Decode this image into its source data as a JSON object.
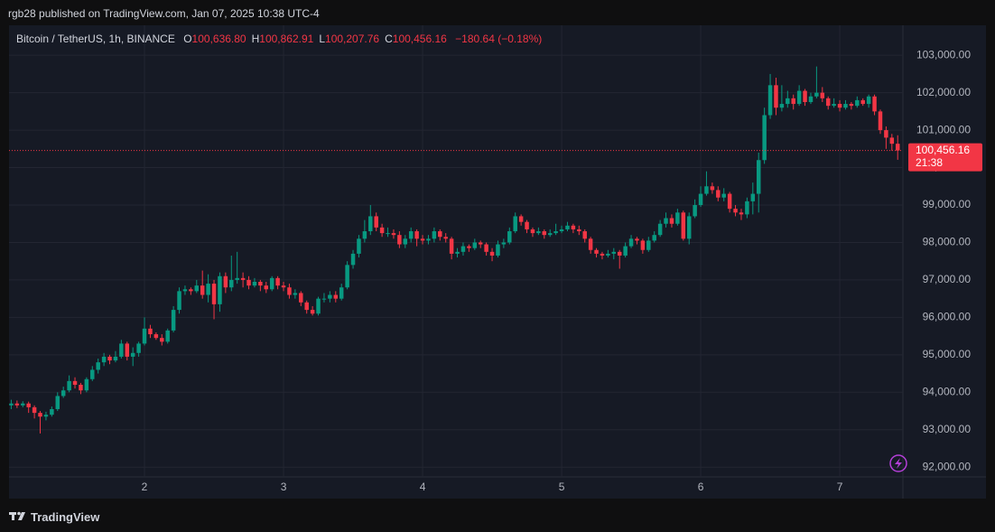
{
  "header": {
    "byline": "rgb28 published on TradingView.com, Jan 07, 2025 10:38 UTC-4"
  },
  "chart_data": {
    "type": "candlestick",
    "symbol": "Bitcoin / TetherUS, 1h, BINANCE",
    "ohlc_legend": [
      {
        "key": "O",
        "value": "100,636.80"
      },
      {
        "key": "H",
        "value": "100,862.91"
      },
      {
        "key": "L",
        "value": "100,207.76"
      },
      {
        "key": "C",
        "value": "100,456.16"
      }
    ],
    "change": "−180.64 (−0.18%)",
    "x": [
      1,
      2,
      3,
      4,
      5,
      6,
      7,
      8,
      9,
      10,
      11,
      12,
      13,
      14,
      15,
      16,
      17,
      18,
      19,
      20,
      21,
      22,
      23,
      24,
      25,
      26,
      27,
      28,
      29,
      30,
      31,
      32,
      33,
      34,
      35,
      36,
      37,
      38,
      39,
      40,
      41,
      42,
      43,
      44,
      45,
      46,
      47,
      48,
      49,
      50,
      51,
      52,
      53,
      54,
      55,
      56,
      57,
      58,
      59,
      60,
      61,
      62,
      63,
      64,
      65,
      66,
      67,
      68,
      69,
      70,
      71,
      72,
      73,
      74,
      75,
      76,
      77,
      78,
      79,
      80,
      81,
      82,
      83,
      84,
      85,
      86,
      87,
      88,
      89,
      90,
      91,
      92,
      93,
      94,
      95,
      96,
      97,
      98,
      99,
      100,
      101,
      102,
      103,
      104,
      105,
      106,
      107,
      108,
      109,
      110,
      111,
      112,
      113,
      114,
      115,
      116,
      117,
      118,
      119,
      120,
      121,
      122,
      123,
      124,
      125,
      126,
      127,
      128,
      129,
      130,
      131,
      132,
      133,
      134,
      135,
      136,
      137,
      138,
      139,
      140,
      141,
      142,
      143,
      144,
      145,
      146,
      147,
      148,
      149,
      150,
      151,
      152,
      153,
      154
    ],
    "xlim": [
      0.62,
      154.9
    ],
    "xticks": [
      {
        "value": 24,
        "label": "2"
      },
      {
        "value": 48,
        "label": "3"
      },
      {
        "value": 72,
        "label": "4"
      },
      {
        "value": 96,
        "label": "5"
      },
      {
        "value": 120,
        "label": "6"
      },
      {
        "value": 144,
        "label": "7"
      }
    ],
    "ylim": [
      91740,
      103800
    ],
    "yticks": [
      {
        "value": 92000,
        "label": "92,000.00"
      },
      {
        "value": 93000,
        "label": "93,000.00"
      },
      {
        "value": 94000,
        "label": "94,000.00"
      },
      {
        "value": 95000,
        "label": "95,000.00"
      },
      {
        "value": 96000,
        "label": "96,000.00"
      },
      {
        "value": 97000,
        "label": "97,000.00"
      },
      {
        "value": 98000,
        "label": "98,000.00"
      },
      {
        "value": 99000,
        "label": "99,000.00"
      },
      {
        "value": 100000,
        "label": "100,000.00"
      },
      {
        "value": 101000,
        "label": "101,000.00"
      },
      {
        "value": 102000,
        "label": "102,000.00"
      },
      {
        "value": 103000,
        "label": "103,000.00"
      }
    ],
    "grid": true,
    "series": [
      {
        "up_color": "#089981",
        "down_color": "#f23645",
        "open": [
          93650,
          93700,
          93650,
          93700,
          93600,
          93450,
          93350,
          93400,
          93550,
          93900,
          94050,
          94300,
          94200,
          94050,
          94350,
          94600,
          94800,
          94950,
          94850,
          94950,
          95300,
          94950,
          95050,
          95300,
          95700,
          95550,
          95450,
          95350,
          95650,
          96200,
          96700,
          96750,
          96700,
          96850,
          96600,
          96900,
          96350,
          97100,
          96800,
          97000,
          97050,
          97000,
          96850,
          96950,
          96850,
          96750,
          97050,
          96850,
          96800,
          96600,
          96650,
          96400,
          96200,
          96100,
          96500,
          96500,
          96600,
          96500,
          96800,
          97400,
          97700,
          98100,
          98300,
          98700,
          98400,
          98250,
          98250,
          98200,
          97950,
          98100,
          98300,
          98100,
          98050,
          98100,
          98300,
          98150,
          98100,
          97700,
          97750,
          97900,
          97850,
          98000,
          97950,
          97750,
          97650,
          97950,
          98000,
          98300,
          98700,
          98550,
          98350,
          98250,
          98300,
          98200,
          98250,
          98300,
          98350,
          98450,
          98350,
          98300,
          98100,
          97800,
          97700,
          97650,
          97700,
          97750,
          97650,
          97900,
          98100,
          98050,
          97800,
          98050,
          98200,
          98500,
          98650,
          98500,
          98800,
          98100,
          98700,
          99000,
          99300,
          99500,
          99400,
          99200,
          99300,
          98900,
          98800,
          98750,
          99100,
          99300,
          100200,
          101400,
          102200,
          101600,
          101700,
          101850,
          101700,
          102050,
          101750,
          101900,
          102000,
          101850,
          101650,
          101700,
          101600,
          101700,
          101650,
          101800,
          101700,
          101900,
          101500,
          101000,
          100800,
          100636.8
        ],
        "high": [
          93800,
          93780,
          93760,
          93750,
          93650,
          93500,
          93480,
          93620,
          94000,
          94150,
          94450,
          94400,
          94250,
          94400,
          94700,
          94900,
          95050,
          95000,
          95100,
          95400,
          95350,
          95200,
          95350,
          96000,
          95800,
          95600,
          95550,
          95700,
          96300,
          96800,
          96850,
          96800,
          97000,
          97250,
          97150,
          97000,
          97200,
          97200,
          97650,
          97750,
          97200,
          97100,
          97050,
          97000,
          96950,
          97100,
          97100,
          96950,
          96900,
          96750,
          96700,
          96450,
          96300,
          96550,
          96650,
          96700,
          96700,
          96900,
          97500,
          97800,
          98200,
          98600,
          99000,
          98800,
          98500,
          98400,
          98350,
          98300,
          98200,
          98400,
          98350,
          98200,
          98200,
          98400,
          98350,
          98250,
          98150,
          97850,
          98000,
          97950,
          98100,
          98050,
          98000,
          97850,
          98050,
          98100,
          98400,
          98800,
          98750,
          98600,
          98400,
          98400,
          98350,
          98350,
          98500,
          98450,
          98550,
          98500,
          98450,
          98350,
          98150,
          97850,
          97750,
          97800,
          97850,
          97800,
          98000,
          98200,
          98150,
          98100,
          98150,
          98300,
          98600,
          98800,
          98750,
          98900,
          98850,
          98800,
          99150,
          99500,
          99900,
          99600,
          99500,
          99450,
          99350,
          99000,
          98900,
          99200,
          99600,
          100400,
          101600,
          102500,
          102400,
          102200,
          102050,
          101950,
          102200,
          102100,
          102000,
          102700,
          102150,
          101900,
          101850,
          101800,
          101800,
          101750,
          101900,
          101850,
          101950,
          101950,
          101550,
          101100,
          100900,
          100862.91
        ],
        "low": [
          93550,
          93580,
          93600,
          93450,
          93300,
          92900,
          93250,
          93350,
          93500,
          93850,
          94000,
          94100,
          93950,
          94000,
          94300,
          94500,
          94700,
          94750,
          94800,
          94900,
          94850,
          94700,
          94950,
          95250,
          95450,
          95400,
          95250,
          95300,
          95600,
          96100,
          96600,
          96600,
          96650,
          96500,
          96400,
          95950,
          96150,
          96650,
          96700,
          96900,
          96800,
          96750,
          96800,
          96700,
          96650,
          96700,
          96750,
          96700,
          96500,
          96500,
          96300,
          96100,
          96050,
          96050,
          96400,
          96400,
          96400,
          96450,
          96750,
          97300,
          97600,
          98000,
          98200,
          98300,
          98150,
          98150,
          98100,
          97850,
          97850,
          98000,
          97900,
          97950,
          97950,
          98000,
          98050,
          98000,
          97550,
          97600,
          97650,
          97750,
          97800,
          97850,
          97650,
          97500,
          97600,
          97850,
          97950,
          98250,
          98450,
          98250,
          98150,
          98200,
          98100,
          98150,
          98200,
          98250,
          98300,
          98250,
          98200,
          98000,
          97700,
          97600,
          97550,
          97600,
          97550,
          97300,
          97600,
          97850,
          97950,
          97700,
          97750,
          98000,
          98150,
          98400,
          98400,
          98450,
          98050,
          97950,
          98650,
          98950,
          99250,
          99300,
          99100,
          99100,
          98800,
          98700,
          98600,
          98650,
          98750,
          98800,
          100100,
          101300,
          101400,
          101500,
          101600,
          101550,
          101650,
          101650,
          101700,
          101850,
          101750,
          101550,
          101600,
          101500,
          101550,
          101550,
          101600,
          101650,
          101600,
          101400,
          100900,
          100500,
          100450,
          100207.76
        ],
        "close": [
          93700,
          93650,
          93700,
          93600,
          93450,
          93350,
          93400,
          93550,
          93900,
          94050,
          94300,
          94200,
          94050,
          94350,
          94600,
          94800,
          94950,
          94850,
          94950,
          95300,
          94950,
          95050,
          95300,
          95700,
          95550,
          95450,
          95350,
          95650,
          96200,
          96700,
          96750,
          96700,
          96850,
          96600,
          96900,
          96350,
          97100,
          96800,
          97000,
          97050,
          97000,
          96850,
          96950,
          96850,
          96750,
          97050,
          96850,
          96800,
          96600,
          96650,
          96400,
          96200,
          96100,
          96500,
          96500,
          96600,
          96500,
          96800,
          97400,
          97700,
          98100,
          98300,
          98700,
          98400,
          98250,
          98250,
          98200,
          97950,
          98100,
          98300,
          98100,
          98050,
          98100,
          98300,
          98150,
          98100,
          97700,
          97750,
          97900,
          97850,
          98000,
          97950,
          97750,
          97650,
          97950,
          98000,
          98300,
          98700,
          98550,
          98350,
          98250,
          98300,
          98200,
          98250,
          98300,
          98350,
          98450,
          98350,
          98300,
          98100,
          97800,
          97700,
          97650,
          97700,
          97750,
          97650,
          97900,
          98100,
          98050,
          97800,
          98050,
          98200,
          98500,
          98650,
          98500,
          98800,
          98100,
          98700,
          99000,
          99300,
          99500,
          99400,
          99200,
          99300,
          98900,
          98800,
          98750,
          99100,
          99300,
          100200,
          101400,
          102200,
          101600,
          101700,
          101850,
          101700,
          102050,
          101750,
          101900,
          102000,
          101850,
          101650,
          101700,
          101600,
          101700,
          101650,
          101800,
          101700,
          101900,
          101500,
          101000,
          100800,
          100636.8,
          100456.16
        ]
      }
    ],
    "last_price": {
      "value": 100456.16,
      "label": "100,456.16",
      "countdown": "21:38",
      "color": "#f23645"
    }
  },
  "footer": {
    "brand": "TradingView"
  }
}
